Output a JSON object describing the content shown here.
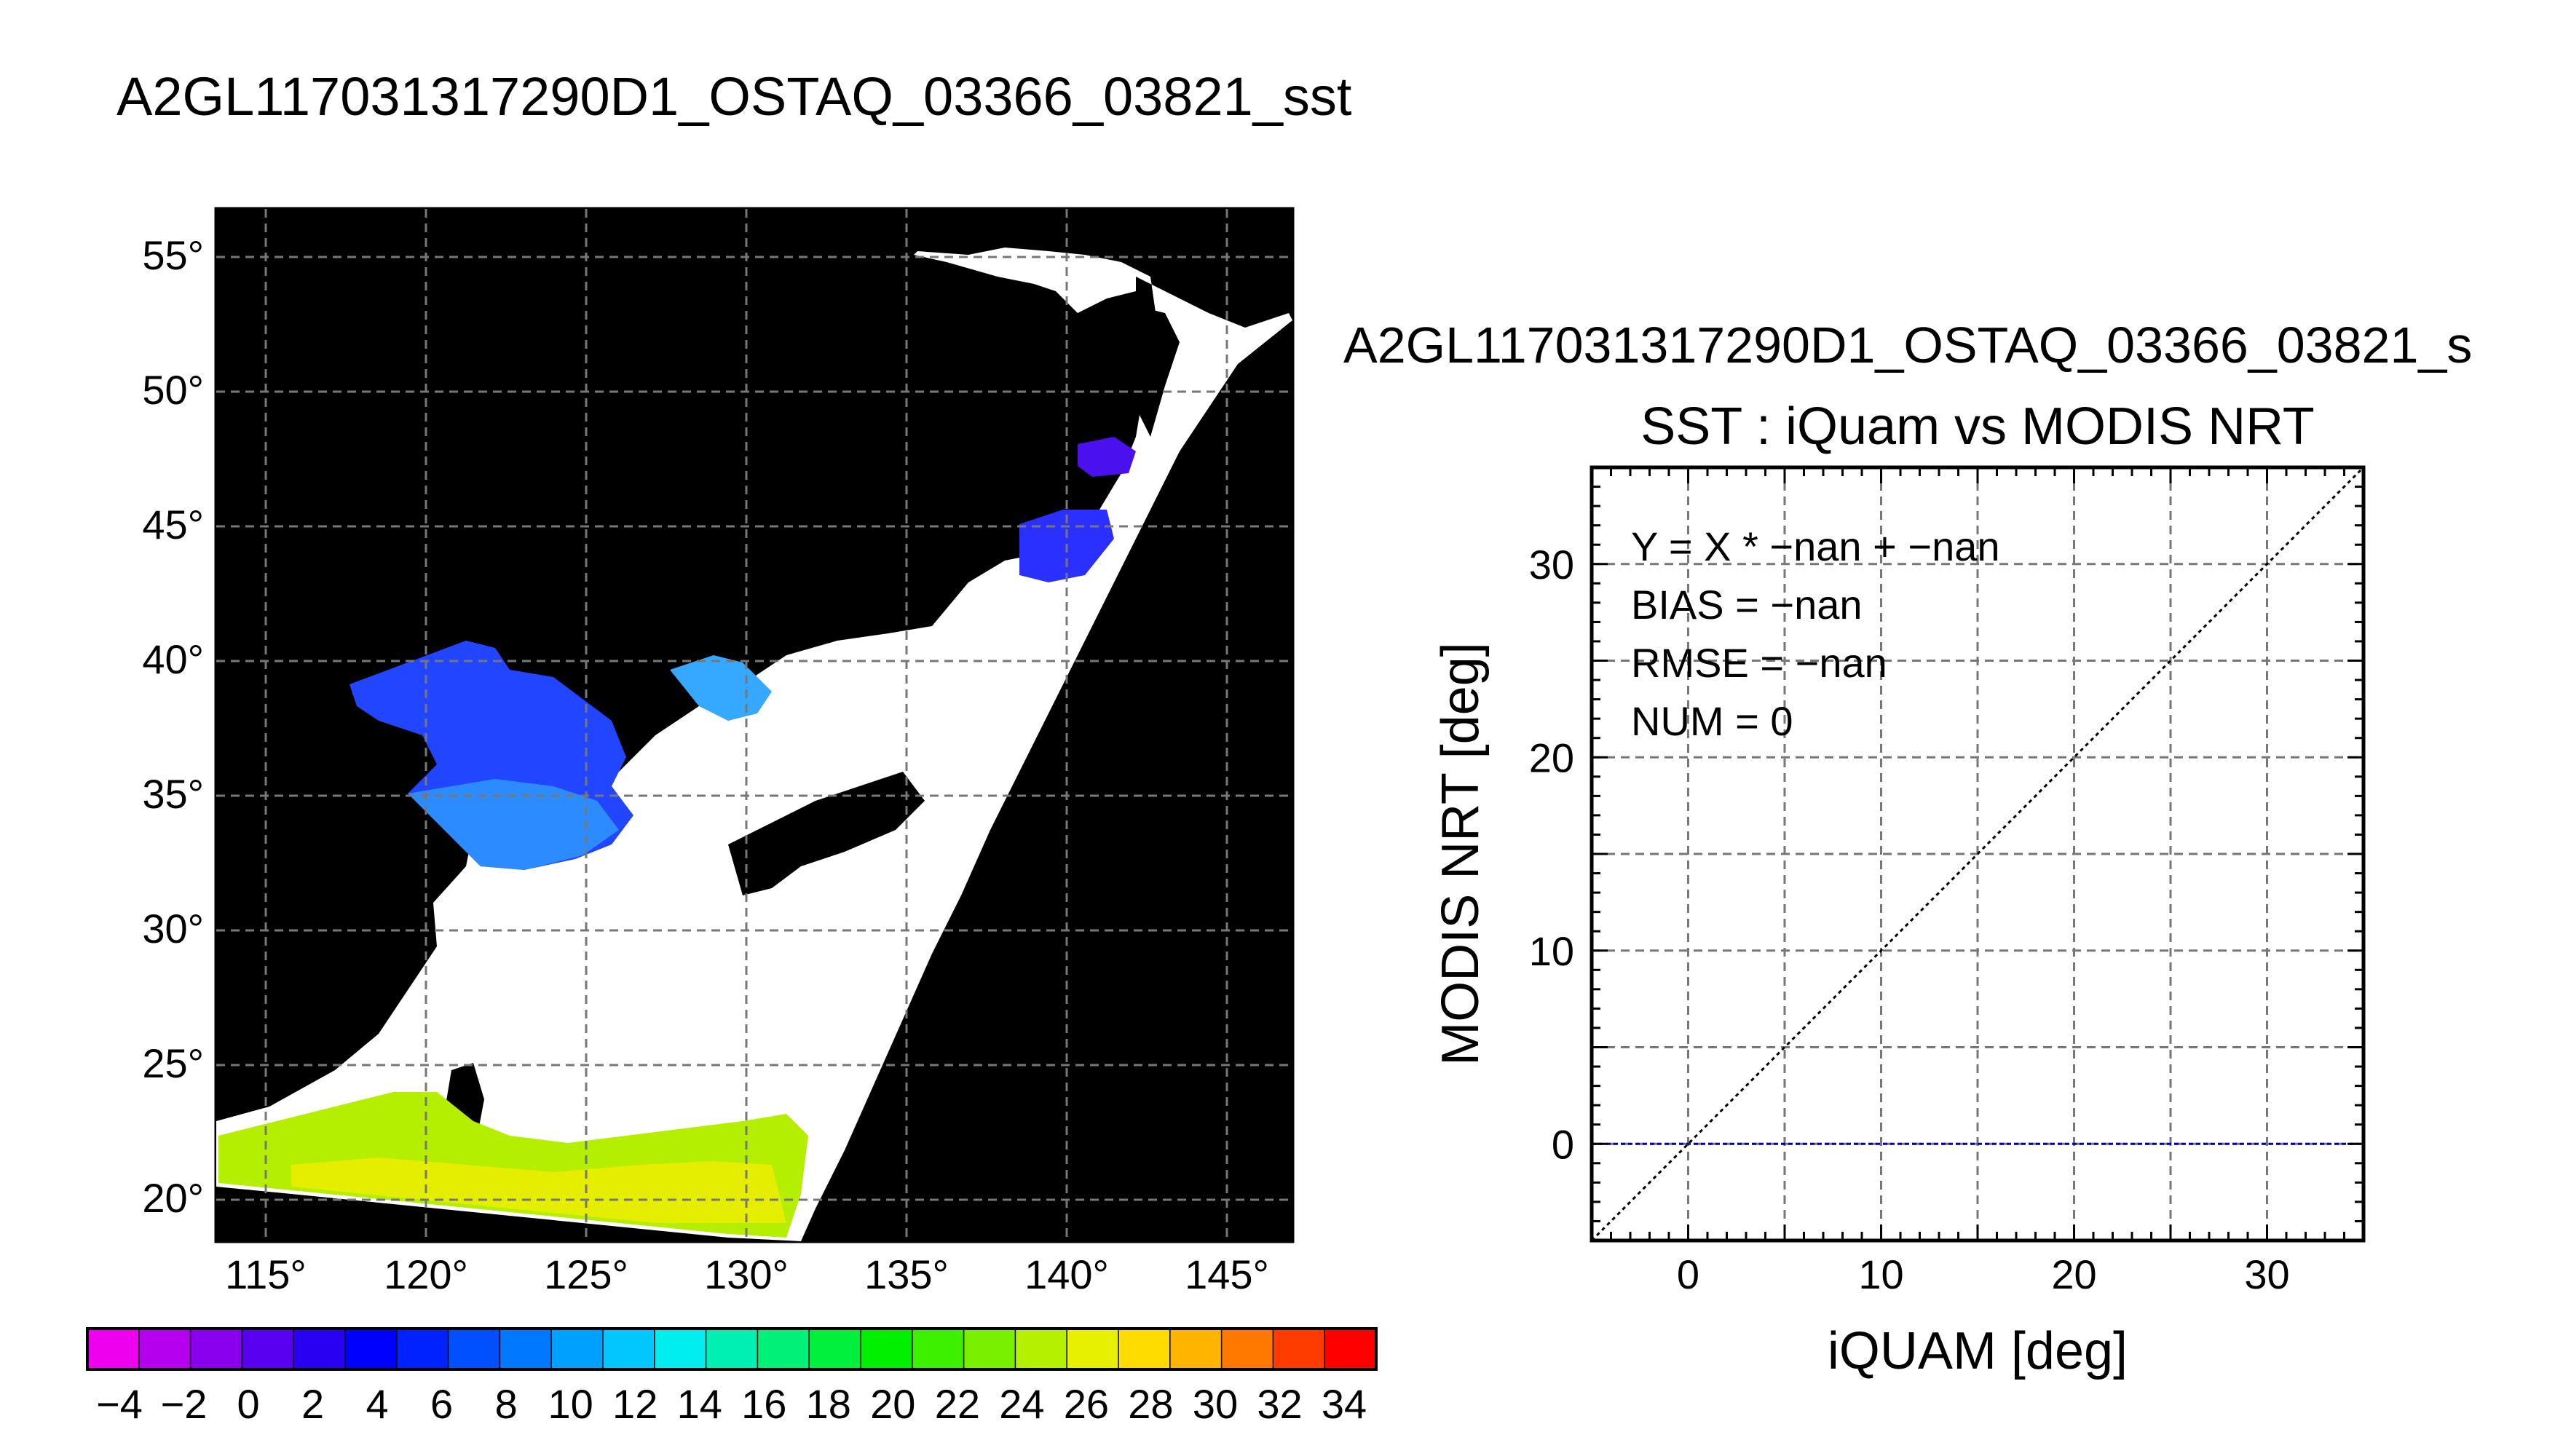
{
  "map_panel": {
    "title": "A2GL117031317290D1_OSTAQ_03366_03821_sst",
    "lat_ticks": [
      "55°",
      "50°",
      "45°",
      "40°",
      "35°",
      "30°",
      "25°",
      "20°"
    ],
    "lon_ticks": [
      "115°",
      "120°",
      "125°",
      "130°",
      "135°",
      "140°",
      "145°"
    ],
    "background_color": "#000000",
    "land_color": "#ffffff"
  },
  "colorbar": {
    "labels": [
      "−4",
      "−2",
      "0",
      "2",
      "4",
      "6",
      "8",
      "10",
      "12",
      "14",
      "16",
      "18",
      "20",
      "22",
      "24",
      "26",
      "28",
      "30",
      "32",
      "34"
    ],
    "colors": [
      "#ee00ee",
      "#b400ee",
      "#8a00ee",
      "#5a00f0",
      "#2a00f2",
      "#0000ff",
      "#0022ff",
      "#0050ff",
      "#0078ff",
      "#00a0ff",
      "#00c8ff",
      "#00eeee",
      "#00f0b4",
      "#00f078",
      "#00f03c",
      "#00f000",
      "#3cf000",
      "#78f000",
      "#b4f000",
      "#e6f000",
      "#ffdc00",
      "#ffb400",
      "#ff7800",
      "#ff3c00",
      "#ff0000"
    ]
  },
  "scatter_panel": {
    "header": "A2GL117031317290D1_OSTAQ_03366_03821_s",
    "title": "SST : iQuam vs MODIS NRT",
    "stats": [
      "Y = X * −nan + −nan",
      "BIAS = −nan",
      "RMSE = −nan",
      "NUM = 0"
    ],
    "xlabel": "iQUAM [deg]",
    "ylabel": "MODIS NRT [deg]"
  },
  "chart_data": {
    "type": "scatter",
    "title": "SST : iQuam vs MODIS NRT",
    "xlabel": "iQUAM [deg]",
    "ylabel": "MODIS NRT [deg]",
    "xlim": [
      -5,
      35
    ],
    "ylim": [
      -5,
      35
    ],
    "x_ticks": [
      0,
      10,
      20,
      30
    ],
    "y_ticks": [
      0,
      10,
      20,
      30
    ],
    "grid": true,
    "series": [],
    "reference_lines": [
      {
        "kind": "identity",
        "style": "dotted",
        "color": "#000000"
      },
      {
        "kind": "horizontal",
        "y": 0,
        "style": "dashed",
        "color": "#0000aa"
      }
    ]
  }
}
